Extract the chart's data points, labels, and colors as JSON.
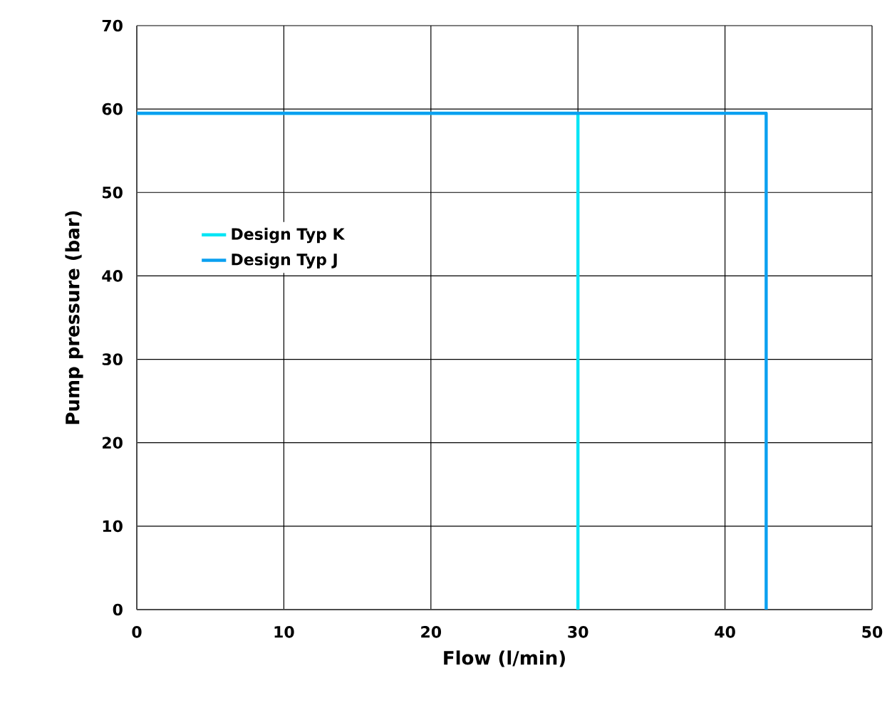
{
  "chart_data": {
    "type": "line",
    "xlabel": "Flow (l/min)",
    "ylabel": "Pump pressure (bar)",
    "xlim": [
      0,
      50
    ],
    "ylim": [
      0,
      70
    ],
    "xticks": [
      0,
      10,
      20,
      30,
      40,
      50
    ],
    "yticks": [
      0,
      10,
      20,
      30,
      40,
      50,
      60,
      70
    ],
    "grid": true,
    "legend": "left",
    "marker": "none",
    "line_style": "solid",
    "series": [
      {
        "name": "Design Typ K",
        "color": "#00e5f5",
        "x": [
          0,
          30,
          30
        ],
        "values": [
          59.5,
          59.5,
          0
        ]
      },
      {
        "name": "Design Typ J",
        "color": "#0aa0f0",
        "x": [
          0,
          42.8,
          42.8
        ],
        "values": [
          59.5,
          59.5,
          0
        ]
      }
    ]
  }
}
